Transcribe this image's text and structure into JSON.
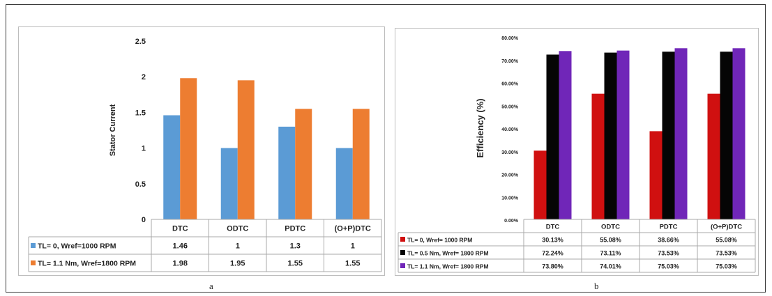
{
  "panels": {
    "a_label": "a",
    "b_label": "b"
  },
  "chart_data": [
    {
      "type": "bar",
      "title": "",
      "xlabel": "",
      "ylabel": "Stator Current",
      "ylim": [
        0,
        2.5
      ],
      "yticks": [
        "0",
        "0.5",
        "1",
        "1.5",
        "2",
        "2.5"
      ],
      "categories": [
        "DTC",
        "ODTC",
        "PDTC",
        "(O+P)DTC"
      ],
      "series": [
        {
          "name": "TL= 0, Wref=1000 RPM",
          "color": "#5b9bd5",
          "values": [
            1.46,
            1,
            1.3,
            1
          ],
          "labels": [
            "1.46",
            "1",
            "1.3",
            "1"
          ]
        },
        {
          "name": "TL= 1.1 Nm, Wref=1800 RPM",
          "color": "#ed7d31",
          "values": [
            1.98,
            1.95,
            1.55,
            1.55
          ],
          "labels": [
            "1.98",
            "1.95",
            "1.55",
            "1.55"
          ]
        }
      ],
      "grid": false,
      "legend": "data table below chart"
    },
    {
      "type": "bar",
      "title": "",
      "xlabel": "",
      "ylabel": "Efficiency (%)",
      "ylim": [
        0,
        80
      ],
      "yticks": [
        "0.00%",
        "10.00%",
        "20.00%",
        "30.00%",
        "40.00%",
        "50.00%",
        "60.00%",
        "70.00%",
        "80.00%"
      ],
      "categories": [
        "DTC",
        "ODTC",
        "PDTC",
        "(O+P)DTC"
      ],
      "series": [
        {
          "name": "TL= 0, Wref= 1000 RPM",
          "color": "#d01010",
          "values": [
            30.13,
            55.08,
            38.66,
            55.08
          ],
          "labels": [
            "30.13%",
            "55.08%",
            "38.66%",
            "55.08%"
          ]
        },
        {
          "name": "TL= 0.5 Nm, Wref= 1800 RPM",
          "color": "#050505",
          "values": [
            72.24,
            73.11,
            73.53,
            73.53
          ],
          "labels": [
            "72.24%",
            "73.11%",
            "73.53%",
            "73.53%"
          ]
        },
        {
          "name": "TL= 1.1 Nm, Wref= 1800 RPM",
          "color": "#7026b8",
          "values": [
            73.8,
            74.01,
            75.03,
            75.03
          ],
          "labels": [
            "73.80%",
            "74.01%",
            "75.03%",
            "75.03%"
          ]
        }
      ],
      "grid": false,
      "legend": "data table below chart"
    }
  ]
}
